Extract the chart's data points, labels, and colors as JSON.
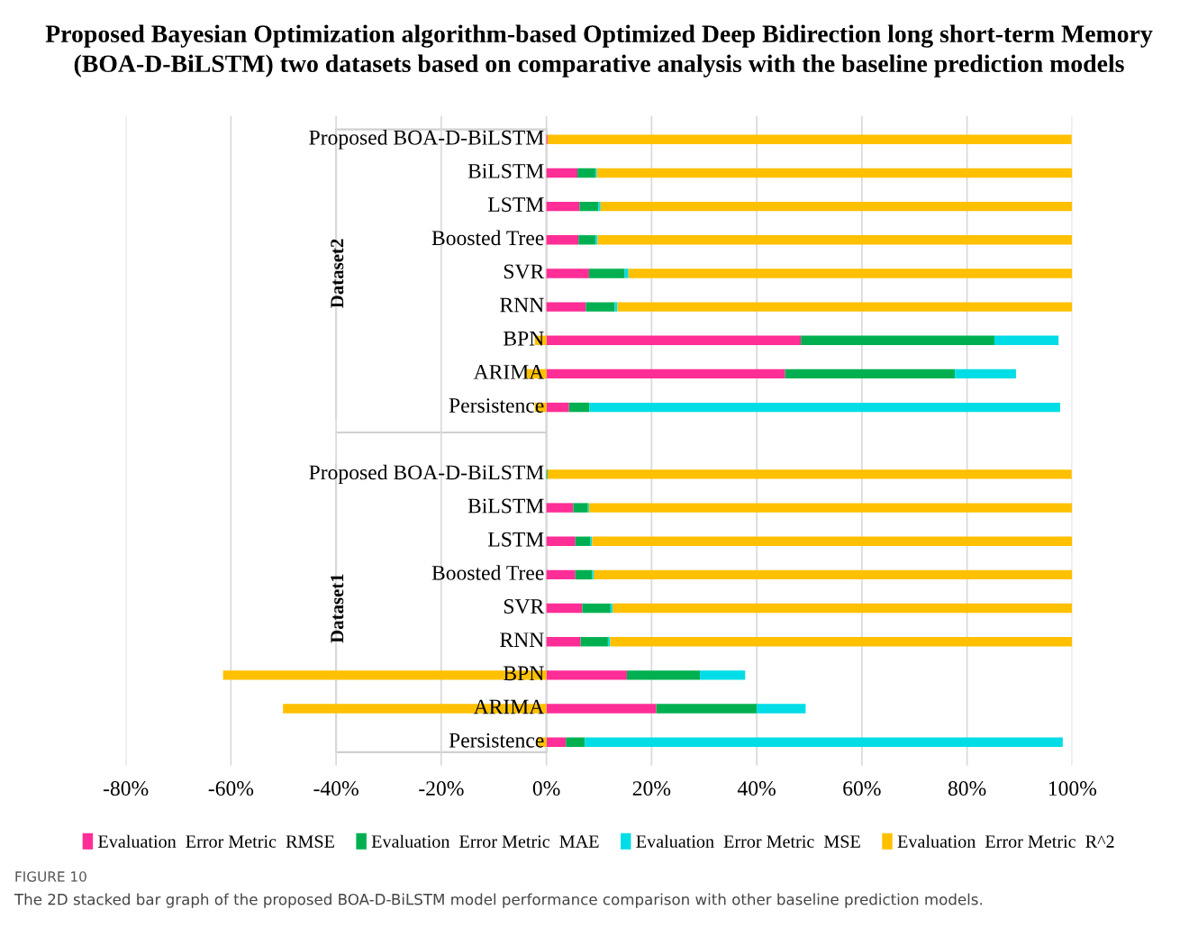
{
  "chart_data": {
    "type": "bar",
    "orientation": "horizontal",
    "stacked": true,
    "title": "Proposed Bayesian Optimization algorithm-based Optimized Deep Bidirection long short-term Memory\n(BOA-D-BiLSTM) two datasets based on comparative analysis with the baseline prediction models",
    "categories": [
      "Proposed BOA-D-BiLSTM",
      "BiLSTM",
      "LSTM",
      "Boosted Tree",
      "SVR",
      "RNN",
      "BPN",
      "ARIMA",
      "Persistence",
      "Proposed BOA-D-BiLSTM",
      "BiLSTM",
      "LSTM",
      "Boosted Tree",
      "SVR",
      "RNN",
      "BPN",
      "ARIMA",
      "Persistence"
    ],
    "series": [
      {
        "name": "Evaluation  Error Metric  RMSE",
        "color": "#ff2d96",
        "values": [
          0.2,
          5.9,
          6.3,
          6.1,
          8.1,
          7.5,
          48.4,
          45.4,
          4.3,
          null,
          5.1,
          5.5,
          5.5,
          6.8,
          6.5,
          15.3,
          20.9,
          3.7
        ]
      },
      {
        "name": "Evaluation  Error Metric  MAE",
        "color": "#00b050",
        "values": [
          null,
          3.4,
          3.6,
          3.2,
          6.8,
          5.5,
          36.8,
          32.3,
          3.9,
          0.2,
          2.8,
          2.9,
          3.2,
          5.4,
          5.2,
          13.9,
          19.1,
          3.6
        ]
      },
      {
        "name": "Evaluation  Error Metric  MSE",
        "color": "#00dde6",
        "values": [
          0,
          0.3,
          0.4,
          0.4,
          0.7,
          0.5,
          12.2,
          11.6,
          89.5,
          0,
          0.2,
          0.3,
          0.3,
          0.4,
          0.4,
          8.6,
          9.3,
          90.9
        ]
      },
      {
        "name": "Evaluation  Error Metric  R^2",
        "color": "#ffc000",
        "values": [
          99.7,
          90.4,
          89.7,
          90.3,
          84.4,
          86.5,
          -2.2,
          -4,
          -2.2,
          99.7,
          91.9,
          91.3,
          91.0,
          87.4,
          87.9,
          -61.5,
          -50.1,
          -1.6
        ]
      }
    ],
    "xlim": [
      -80,
      100
    ],
    "xticks": [
      {
        "value": -80,
        "label": "-80%"
      },
      {
        "value": -60,
        "label": "-60%"
      },
      {
        "value": -40,
        "label": "-40%"
      },
      {
        "value": -20,
        "label": "-20%"
      },
      {
        "value": 0,
        "label": "0%"
      },
      {
        "value": 20,
        "label": "20%"
      },
      {
        "value": 40,
        "label": "40%"
      },
      {
        "value": 60,
        "label": "60%"
      },
      {
        "value": 80,
        "label": "80%"
      },
      {
        "value": 100,
        "label": "100%"
      }
    ],
    "grid": "x",
    "legend": "bottom",
    "annotations": [
      "Dataset2",
      "Dataset1",
      "FIGURE 10",
      "The 2D stacked bar graph of the proposed BOA-D-BiLSTM model performance comparison with other baseline prediction models."
    ]
  }
}
